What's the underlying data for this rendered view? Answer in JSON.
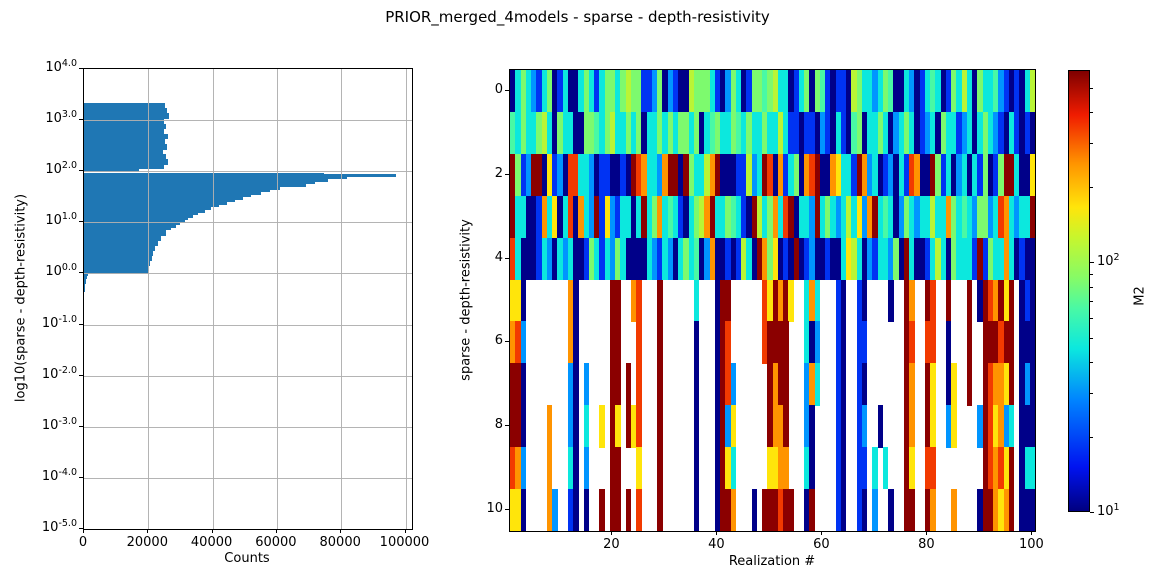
{
  "figure": {
    "title": "PRIOR_merged_4models - sparse - depth-resistivity",
    "background": "#ffffff"
  },
  "chart_data": [
    {
      "id": "depth-resistivity-histogram",
      "type": "bar",
      "orientation": "horizontal",
      "xlabel": "Counts",
      "ylabel": "log10(sparse - depth-resistivity)",
      "x_ticks": [
        0,
        20000,
        40000,
        60000,
        80000,
        100000
      ],
      "xlim": [
        0,
        102300
      ],
      "y_scale": "log",
      "y_tick_exponents": [
        "4.0",
        "3.0",
        "2.0",
        "1.0",
        "0.0",
        "-1.0",
        "-2.0",
        "-3.0",
        "-4.0",
        "-5.0"
      ],
      "ylim_exponents": [
        -5.0,
        4.0
      ],
      "grid": true,
      "grid_color": "#b0b0b0",
      "bar_color": "#1f77b4",
      "bins_exp_top_bottom_count": [
        [
          3.33,
          3.23,
          25200
        ],
        [
          3.23,
          3.13,
          25800
        ],
        [
          3.13,
          3.03,
          26300
        ],
        [
          3.03,
          2.93,
          25000
        ],
        [
          2.93,
          2.83,
          25600
        ],
        [
          2.83,
          2.73,
          24800
        ],
        [
          2.73,
          2.63,
          26000
        ],
        [
          2.63,
          2.53,
          25200
        ],
        [
          2.53,
          2.43,
          25900
        ],
        [
          2.43,
          2.33,
          24600
        ],
        [
          2.33,
          2.23,
          25400
        ],
        [
          2.23,
          2.13,
          26200
        ],
        [
          2.13,
          2.06,
          24900
        ],
        [
          2.06,
          2.0,
          17200
        ],
        [
          1.97,
          1.95,
          74500
        ],
        [
          1.95,
          1.9,
          97000
        ],
        [
          1.9,
          1.85,
          81700
        ],
        [
          1.85,
          1.8,
          76000
        ],
        [
          1.8,
          1.75,
          72000
        ],
        [
          1.75,
          1.7,
          69200
        ],
        [
          1.7,
          1.65,
          60900
        ],
        [
          1.65,
          1.6,
          58000
        ],
        [
          1.6,
          1.55,
          55200
        ],
        [
          1.55,
          1.5,
          52000
        ],
        [
          1.5,
          1.45,
          49500
        ],
        [
          1.45,
          1.4,
          47000
        ],
        [
          1.4,
          1.35,
          44500
        ],
        [
          1.35,
          1.3,
          42000
        ],
        [
          1.3,
          1.25,
          39500
        ],
        [
          1.25,
          1.2,
          37500
        ],
        [
          1.2,
          1.15,
          35500
        ],
        [
          1.15,
          1.1,
          34000
        ],
        [
          1.1,
          1.05,
          32500
        ],
        [
          1.05,
          1.0,
          31500
        ],
        [
          1.0,
          0.95,
          30000
        ],
        [
          0.95,
          0.9,
          28500
        ],
        [
          0.9,
          0.85,
          27000
        ],
        [
          0.85,
          0.75,
          25500
        ],
        [
          0.75,
          0.65,
          24000
        ],
        [
          0.65,
          0.55,
          23000
        ],
        [
          0.55,
          0.45,
          22200
        ],
        [
          0.45,
          0.35,
          21500
        ],
        [
          0.35,
          0.25,
          21000
        ],
        [
          0.25,
          0.15,
          20500
        ],
        [
          0.15,
          0.05,
          20200
        ],
        [
          0.05,
          0.0,
          20000
        ],
        [
          0.0,
          -0.05,
          1300
        ],
        [
          -0.05,
          -0.1,
          800
        ],
        [
          -0.1,
          -0.2,
          600
        ],
        [
          -0.2,
          -0.36,
          450
        ]
      ]
    },
    {
      "id": "realization-heatmap",
      "type": "heatmap",
      "xlabel": "Realization #",
      "ylabel": "sparse - depth-resistivity",
      "x_ticks": [
        20,
        40,
        60,
        80,
        100
      ],
      "y_ticks": [
        0,
        2,
        4,
        6,
        8,
        10
      ],
      "x_range": [
        0.5,
        100.5
      ],
      "y_range": [
        -0.5,
        10.5
      ],
      "n_cols": 100,
      "n_rows": 11,
      "nan_color": "#ffffff",
      "palette": {
        "N": "#000089",
        "B": "#0033f3",
        "b": "#0095ff",
        "C": "#0ce8de",
        "T": "#49f9a5",
        "G": "#7dfa6e",
        "g": "#b9f535",
        "Y": "#ffe50b",
        "O": "#ff9400",
        "R": "#f23a00",
        "D": "#8b0000",
        "W": "#ffffff"
      },
      "rows": [
        "NCGCbBCGNBCNNCGCBCGGCGgGGBBbGNbBNNgGGGCBNbGCNBGGTGgCCNBCGNGTBNBBNgGCCbCGTNNCbNBCTCNBGCgCNGCCTbBNBNCg",
        "TCGCCGgCNGCCNNGGTCGgCCGCGNCCGCGCGGCGNCTGCCGTCGCCGCCgCBBNBBNbBNCBNTGNCCGCNbCGCNBbCNGCCBbCNCGCbBNCBNBN",
        "DGBbDDNYBbNRRCCbNBBNNBNDROCCbODDNDGCCgODNNNBBgbCDRNOBCGNORDNNOYCCBDObCNBbNCBRONNDGBCNbCNCBGNBGDDCNNY",
        "DCCNNBOCYNCRNOCbDBYbBCCNCDCGOCTCBNCGgODCCGTCBNDgCGOCRDNCCbDCGCbCgCYbODCTCNbGCbCCgCCOGCTCbGGbCROCbCCD",
        "RCNNNBCbNCbCNNBGCBCbGCNNNNCbBCbNCGCTNbONNBNBgCNDOGYNBNDNBbNNBNNCYgCNbBCCbGNDCNNBCgCNGCCCBDBGCCOCNBNN",
        "YYNWWWWWWWWONWWWWWWDDWWORWWWDWWWWWWCWWWNDDWWWWWWRYDODYWWCOCWWWBNWWBNWWWWNWWDOWWDRWWDWWWDWNDRODYDWNBN",
        "ORbWWWWWWWWONWWWWWWDDWWWRWWWDWWWWWWNWWWNDRWWWWWWRDDDDWWWCNbWWWBNWWBBWWWWWWWDRWWRRWWNWWWDWWDDDRDDWNNN",
        "DDNWWWWWWWWbNWbWWWWDDWDWRWWWDWWWWWWNWWWNDRbWWWWWWDODDWWWbOCWWWBNWWBNWWWWWWWDOWWDYWWNYWWDWWDROOYDWNbN",
        "DDNWWWWOWWWbNWCWWYWDYWDYRWWWDWWWWWWNWWWNDbYWWWWWWDOODWWWbNWWWWBNWWBbWWNWWWWDOWWDYWWbYWWWWbDRYObCWNNN",
        "RObWWWWOWWWCNWbWWWWDDWWWYWWWDWWWWWWNWWWNDYCWWWWWWYYOOWWWCNWWWWBNWWBBWCWCWWWDYWWRRWWWWWWWWWDRORYDWNCC",
        "YYNWWWWObWWBNWNWWDWDDWDWRWWWDWWWWWWNWWWNDDOWWWNWDDDRDDWWNDWWWWBNWWBNWbWWNWWDDWWDOWWWOWWWWNDDOYODWNNN"
      ]
    },
    {
      "id": "colorbar",
      "type": "colorbar",
      "label": "M2",
      "scale": "log",
      "vmin": 10,
      "vmax": 590,
      "major_ticks": [
        {
          "value": 100,
          "exp": "2"
        },
        {
          "value": 10,
          "exp": "1"
        }
      ],
      "minor_ticks": [
        20,
        30,
        40,
        50,
        60,
        70,
        80,
        90,
        200,
        300,
        400,
        500
      ],
      "colormap": "jet",
      "gradient_stops": [
        [
          "#000080",
          0
        ],
        [
          "#0013f0",
          10
        ],
        [
          "#0082ff",
          25
        ],
        [
          "#0ce8de",
          37
        ],
        [
          "#49f9a5",
          46
        ],
        [
          "#86fb66",
          53
        ],
        [
          "#c6f62e",
          62
        ],
        [
          "#ffe50b",
          69
        ],
        [
          "#ff9400",
          79
        ],
        [
          "#f01c00",
          90
        ],
        [
          "#7f0000",
          100
        ]
      ]
    }
  ]
}
